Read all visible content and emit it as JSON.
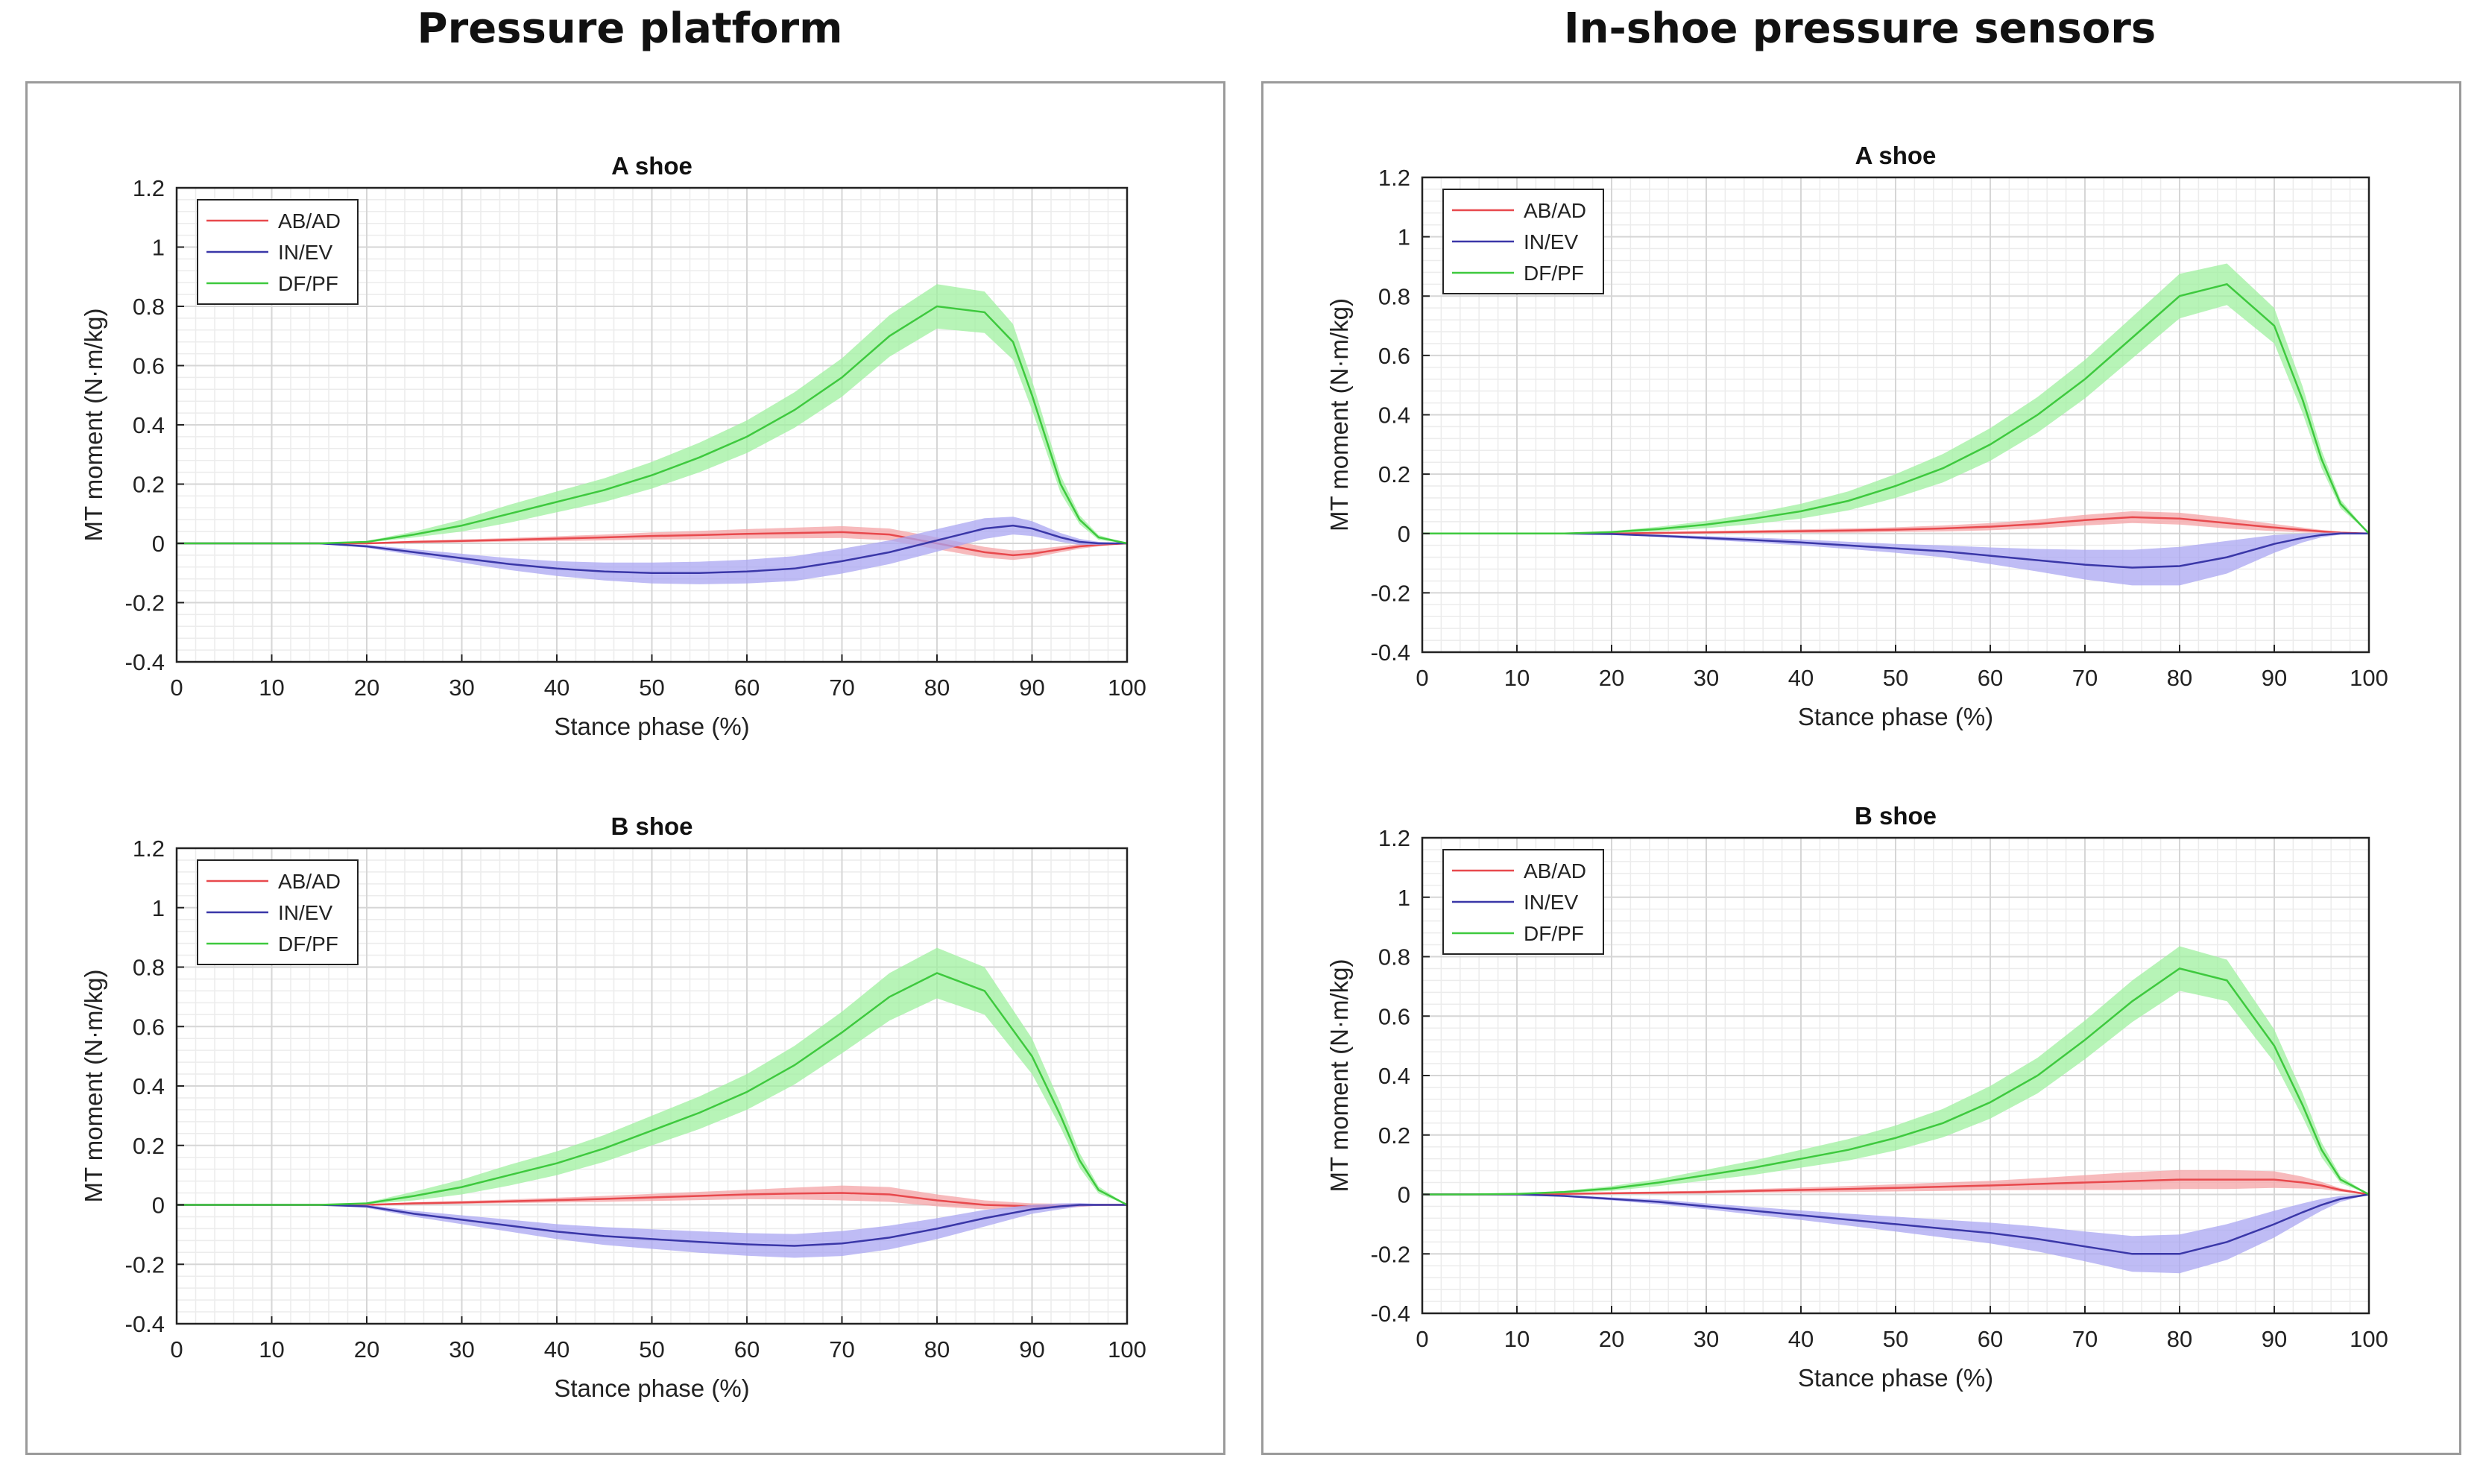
{
  "sections": {
    "left_title": "Pressure platform",
    "right_title": "In-shoe pressure sensors"
  },
  "colors": {
    "ab_ad": "#e8494d",
    "in_ev": "#3a37a8",
    "df_pf": "#3ec93e",
    "ab_ad_band": "#f4a3a6",
    "in_ev_band": "#a9a6f2",
    "df_pf_band": "#9ff09f"
  },
  "chart_data": [
    {
      "type": "line",
      "panel": "Pressure platform",
      "title": "A shoe",
      "xlabel": "Stance phase (%)",
      "ylabel": "MT moment (N·m/kg)",
      "xlim": [
        0,
        100
      ],
      "ylim": [
        -0.4,
        1.2
      ],
      "xticks": [
        "0",
        "10",
        "20",
        "30",
        "40",
        "50",
        "60",
        "70",
        "80",
        "90",
        "100"
      ],
      "yticks": [
        "-0.4",
        "-0.2",
        "0",
        "0.2",
        "0.4",
        "0.6",
        "0.8",
        "1",
        "1.2"
      ],
      "grid": true,
      "legend": "top-left",
      "x": [
        0,
        10,
        15,
        20,
        25,
        30,
        35,
        40,
        45,
        50,
        55,
        60,
        65,
        70,
        75,
        80,
        85,
        88,
        90,
        93,
        95,
        97,
        100
      ],
      "series": [
        {
          "name": "AB/AD",
          "values": [
            0,
            0,
            0,
            0,
            0.005,
            0.008,
            0.012,
            0.016,
            0.02,
            0.025,
            0.028,
            0.032,
            0.035,
            0.038,
            0.03,
            0.0,
            -0.03,
            -0.04,
            -0.035,
            -0.02,
            -0.01,
            -0.005,
            0
          ],
          "sd": [
            0,
            0,
            0,
            0.002,
            0.004,
            0.005,
            0.006,
            0.008,
            0.01,
            0.012,
            0.014,
            0.016,
            0.018,
            0.02,
            0.02,
            0.02,
            0.018,
            0.016,
            0.014,
            0.01,
            0.008,
            0.005,
            0
          ]
        },
        {
          "name": "IN/EV",
          "values": [
            0,
            0,
            0,
            -0.01,
            -0.03,
            -0.05,
            -0.07,
            -0.085,
            -0.095,
            -0.1,
            -0.1,
            -0.095,
            -0.085,
            -0.06,
            -0.03,
            0.01,
            0.05,
            0.06,
            0.05,
            0.02,
            0.005,
            0,
            0
          ],
          "sd": [
            0,
            0,
            0,
            0.005,
            0.01,
            0.015,
            0.02,
            0.025,
            0.03,
            0.035,
            0.038,
            0.04,
            0.042,
            0.042,
            0.04,
            0.038,
            0.035,
            0.03,
            0.025,
            0.015,
            0.01,
            0.005,
            0
          ]
        },
        {
          "name": "DF/PF",
          "values": [
            0,
            0,
            0,
            0.005,
            0.03,
            0.06,
            0.1,
            0.14,
            0.18,
            0.23,
            0.29,
            0.36,
            0.45,
            0.56,
            0.7,
            0.8,
            0.78,
            0.68,
            0.5,
            0.2,
            0.08,
            0.02,
            0
          ],
          "sd": [
            0,
            0,
            0,
            0.003,
            0.01,
            0.02,
            0.03,
            0.035,
            0.04,
            0.045,
            0.05,
            0.055,
            0.06,
            0.065,
            0.07,
            0.075,
            0.07,
            0.06,
            0.05,
            0.03,
            0.015,
            0.008,
            0
          ]
        }
      ]
    },
    {
      "type": "line",
      "panel": "Pressure platform",
      "title": "B shoe",
      "xlabel": "Stance phase (%)",
      "ylabel": "MT moment (N·m/kg)",
      "xlim": [
        0,
        100
      ],
      "ylim": [
        -0.4,
        1.2
      ],
      "xticks": [
        "0",
        "10",
        "20",
        "30",
        "40",
        "50",
        "60",
        "70",
        "80",
        "90",
        "100"
      ],
      "yticks": [
        "-0.4",
        "-0.2",
        "0",
        "0.2",
        "0.4",
        "0.6",
        "0.8",
        "1",
        "1.2"
      ],
      "grid": true,
      "legend": "top-left",
      "x": [
        0,
        10,
        15,
        20,
        25,
        30,
        35,
        40,
        45,
        50,
        55,
        60,
        65,
        70,
        75,
        80,
        85,
        90,
        93,
        95,
        97,
        100
      ],
      "series": [
        {
          "name": "AB/AD",
          "values": [
            0,
            0,
            0,
            0,
            0.005,
            0.008,
            0.012,
            0.016,
            0.02,
            0.025,
            0.03,
            0.035,
            0.038,
            0.04,
            0.035,
            0.015,
            0.0,
            -0.005,
            -0.004,
            -0.002,
            0,
            0
          ],
          "sd": [
            0,
            0,
            0,
            0.002,
            0.004,
            0.005,
            0.006,
            0.008,
            0.01,
            0.012,
            0.014,
            0.016,
            0.02,
            0.025,
            0.025,
            0.02,
            0.015,
            0.01,
            0.008,
            0.005,
            0.003,
            0
          ]
        },
        {
          "name": "IN/EV",
          "values": [
            0,
            0,
            0,
            -0.005,
            -0.03,
            -0.05,
            -0.07,
            -0.09,
            -0.105,
            -0.115,
            -0.125,
            -0.133,
            -0.138,
            -0.13,
            -0.11,
            -0.08,
            -0.045,
            -0.015,
            -0.005,
            0,
            0,
            0
          ],
          "sd": [
            0,
            0,
            0,
            0.005,
            0.01,
            0.015,
            0.02,
            0.025,
            0.03,
            0.033,
            0.036,
            0.038,
            0.04,
            0.042,
            0.04,
            0.035,
            0.028,
            0.015,
            0.01,
            0.006,
            0.003,
            0
          ]
        },
        {
          "name": "DF/PF",
          "values": [
            0,
            0,
            0,
            0.005,
            0.03,
            0.06,
            0.1,
            0.14,
            0.19,
            0.25,
            0.31,
            0.38,
            0.47,
            0.58,
            0.7,
            0.78,
            0.72,
            0.5,
            0.3,
            0.15,
            0.05,
            0
          ],
          "sd": [
            0,
            0,
            0,
            0.003,
            0.015,
            0.025,
            0.035,
            0.04,
            0.045,
            0.05,
            0.055,
            0.06,
            0.065,
            0.07,
            0.08,
            0.085,
            0.08,
            0.06,
            0.04,
            0.025,
            0.012,
            0
          ]
        }
      ]
    },
    {
      "type": "line",
      "panel": "In-shoe pressure sensors",
      "title": "A shoe",
      "xlabel": "Stance phase (%)",
      "ylabel": "MT moment (N·m/kg)",
      "xlim": [
        0,
        100
      ],
      "ylim": [
        -0.4,
        1.2
      ],
      "xticks": [
        "0",
        "10",
        "20",
        "30",
        "40",
        "50",
        "60",
        "70",
        "80",
        "90",
        "100"
      ],
      "yticks": [
        "-0.4",
        "-0.2",
        "0",
        "0.2",
        "0.4",
        "0.6",
        "0.8",
        "1",
        "1.2"
      ],
      "grid": true,
      "legend": "top-left",
      "x": [
        0,
        10,
        15,
        20,
        25,
        30,
        35,
        40,
        45,
        50,
        55,
        60,
        65,
        70,
        75,
        80,
        85,
        90,
        93,
        95,
        97,
        100
      ],
      "series": [
        {
          "name": "AB/AD",
          "values": [
            0,
            0,
            0,
            0,
            0.002,
            0.004,
            0.006,
            0.008,
            0.01,
            0.013,
            0.017,
            0.023,
            0.032,
            0.045,
            0.055,
            0.05,
            0.035,
            0.02,
            0.012,
            0.007,
            0.003,
            0
          ],
          "sd": [
            0,
            0,
            0,
            0.002,
            0.003,
            0.004,
            0.005,
            0.006,
            0.007,
            0.008,
            0.01,
            0.012,
            0.015,
            0.018,
            0.02,
            0.02,
            0.018,
            0.012,
            0.008,
            0.005,
            0.003,
            0
          ]
        },
        {
          "name": "IN/EV",
          "values": [
            0,
            0,
            0,
            -0.002,
            -0.008,
            -0.015,
            -0.022,
            -0.03,
            -0.04,
            -0.05,
            -0.06,
            -0.075,
            -0.09,
            -0.105,
            -0.115,
            -0.11,
            -0.08,
            -0.035,
            -0.015,
            -0.005,
            0,
            0
          ],
          "sd": [
            0,
            0,
            0,
            0.002,
            0.004,
            0.006,
            0.008,
            0.01,
            0.012,
            0.015,
            0.02,
            0.028,
            0.038,
            0.05,
            0.06,
            0.065,
            0.055,
            0.03,
            0.015,
            0.008,
            0.004,
            0
          ]
        },
        {
          "name": "DF/PF",
          "values": [
            0,
            0,
            0,
            0.005,
            0.015,
            0.03,
            0.05,
            0.075,
            0.11,
            0.16,
            0.22,
            0.3,
            0.4,
            0.52,
            0.66,
            0.8,
            0.84,
            0.7,
            0.45,
            0.25,
            0.1,
            0
          ],
          "sd": [
            0,
            0,
            0,
            0.003,
            0.008,
            0.012,
            0.018,
            0.025,
            0.032,
            0.04,
            0.048,
            0.055,
            0.06,
            0.065,
            0.07,
            0.075,
            0.07,
            0.06,
            0.045,
            0.03,
            0.015,
            0
          ]
        }
      ]
    },
    {
      "type": "line",
      "panel": "In-shoe pressure sensors",
      "title": "B shoe",
      "xlabel": "Stance phase (%)",
      "ylabel": "MT moment (N·m/kg)",
      "xlim": [
        0,
        100
      ],
      "ylim": [
        -0.4,
        1.2
      ],
      "xticks": [
        "0",
        "10",
        "20",
        "30",
        "40",
        "50",
        "60",
        "70",
        "80",
        "90",
        "100"
      ],
      "yticks": [
        "-0.4",
        "-0.2",
        "0",
        "0.2",
        "0.4",
        "0.6",
        "0.8",
        "1",
        "1.2"
      ],
      "grid": true,
      "legend": "top-left",
      "x": [
        0,
        5,
        10,
        15,
        20,
        25,
        30,
        35,
        40,
        45,
        50,
        55,
        60,
        65,
        70,
        75,
        80,
        85,
        90,
        93,
        95,
        97,
        100
      ],
      "series": [
        {
          "name": "AB/AD",
          "values": [
            0,
            0,
            0,
            0.002,
            0.004,
            0.006,
            0.008,
            0.012,
            0.015,
            0.018,
            0.022,
            0.026,
            0.03,
            0.035,
            0.04,
            0.045,
            0.05,
            0.05,
            0.05,
            0.04,
            0.03,
            0.015,
            0
          ],
          "sd": [
            0,
            0,
            0,
            0.002,
            0.003,
            0.004,
            0.005,
            0.006,
            0.008,
            0.01,
            0.012,
            0.014,
            0.016,
            0.02,
            0.025,
            0.03,
            0.032,
            0.032,
            0.028,
            0.02,
            0.012,
            0.006,
            0
          ]
        },
        {
          "name": "IN/EV",
          "values": [
            0,
            0,
            0,
            -0.005,
            -0.015,
            -0.025,
            -0.04,
            -0.055,
            -0.07,
            -0.085,
            -0.1,
            -0.115,
            -0.13,
            -0.15,
            -0.175,
            -0.2,
            -0.2,
            -0.16,
            -0.1,
            -0.06,
            -0.035,
            -0.015,
            0
          ],
          "sd": [
            0,
            0,
            0,
            0.003,
            0.005,
            0.008,
            0.01,
            0.013,
            0.016,
            0.02,
            0.025,
            0.03,
            0.035,
            0.042,
            0.05,
            0.06,
            0.065,
            0.06,
            0.045,
            0.03,
            0.02,
            0.01,
            0
          ]
        },
        {
          "name": "DF/PF",
          "values": [
            0,
            0,
            0.002,
            0.008,
            0.02,
            0.04,
            0.065,
            0.09,
            0.12,
            0.15,
            0.19,
            0.24,
            0.31,
            0.4,
            0.52,
            0.65,
            0.76,
            0.72,
            0.5,
            0.3,
            0.15,
            0.05,
            0
          ],
          "sd": [
            0,
            0,
            0.002,
            0.004,
            0.008,
            0.012,
            0.018,
            0.024,
            0.03,
            0.036,
            0.042,
            0.048,
            0.055,
            0.06,
            0.065,
            0.07,
            0.075,
            0.07,
            0.055,
            0.04,
            0.025,
            0.012,
            0
          ]
        }
      ]
    }
  ]
}
